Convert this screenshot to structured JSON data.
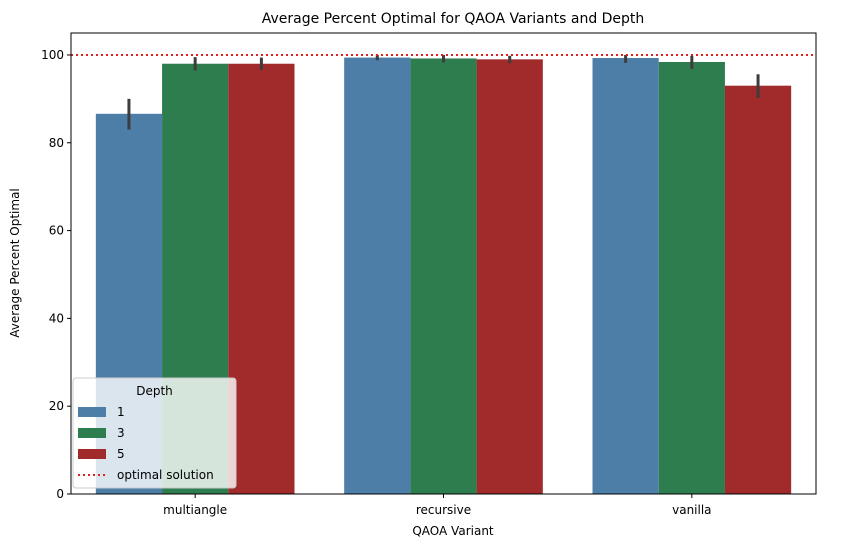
{
  "chart_data": {
    "type": "bar",
    "title": "Average Percent Optimal for QAOA Variants and Depth",
    "xlabel": "QAOA Variant",
    "ylabel": "Average Percent Optimal",
    "categories": [
      "multiangle",
      "recursive",
      "vanilla"
    ],
    "ylim": [
      0,
      105
    ],
    "yticks": [
      0,
      20,
      40,
      60,
      80,
      100
    ],
    "series": [
      {
        "name": "1",
        "color": "#4c7ea8",
        "values": [
          86.6,
          99.4,
          99.3
        ],
        "err_low": [
          83.0,
          98.8,
          98.2
        ],
        "err_high": [
          90.0,
          100.0,
          100.0
        ]
      },
      {
        "name": "3",
        "color": "#2e7d4f",
        "values": [
          98.0,
          99.2,
          98.4
        ],
        "err_low": [
          96.5,
          98.3,
          96.8
        ],
        "err_high": [
          99.5,
          100.0,
          99.8
        ]
      },
      {
        "name": "5",
        "color": "#a12b2b",
        "values": [
          98.0,
          99.0,
          93.0
        ],
        "err_low": [
          96.6,
          98.1,
          90.2
        ],
        "err_high": [
          99.4,
          99.8,
          95.6
        ]
      }
    ],
    "reference_line": {
      "label": "optimal solution",
      "value": 100,
      "color": "#e01f1f"
    },
    "legend": {
      "title": "Depth",
      "placement": "lower-left"
    },
    "grid": false
  }
}
